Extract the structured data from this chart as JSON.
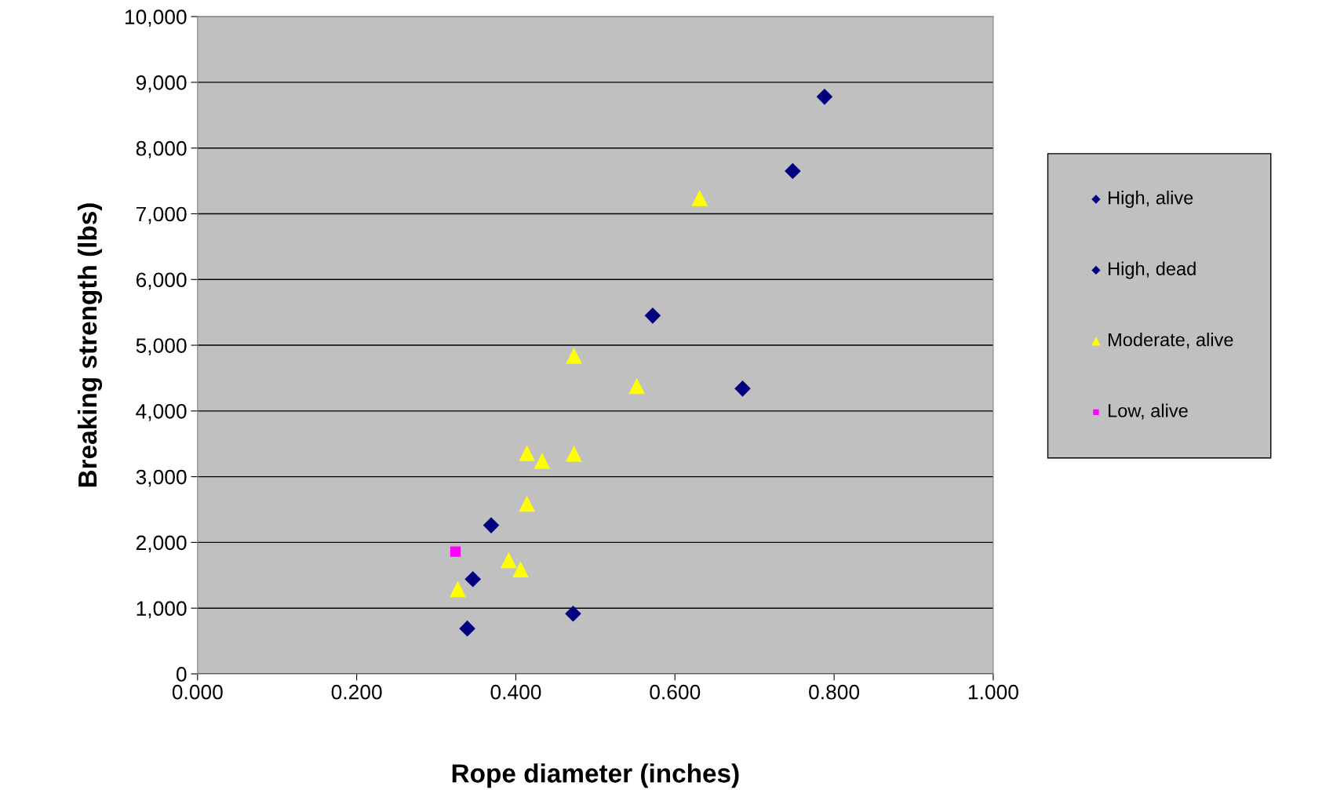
{
  "chart_data": {
    "type": "scatter",
    "xlabel": "Rope diameter (inches)",
    "ylabel": "Breaking strength (lbs)",
    "xlim": [
      0,
      1
    ],
    "xticks": [
      {
        "value": 0,
        "label": "0.000"
      },
      {
        "value": 0.2,
        "label": "0.200"
      },
      {
        "value": 0.4,
        "label": "0.400"
      },
      {
        "value": 0.6,
        "label": "0.600"
      },
      {
        "value": 0.8,
        "label": "0.800"
      },
      {
        "value": 1,
        "label": "1.000"
      }
    ],
    "ylim": [
      0,
      10000
    ],
    "yticks": [
      0,
      {
        "value": 1000,
        "label": "1,000"
      },
      {
        "value": 2000,
        "label": "2,000"
      },
      {
        "value": 3000,
        "label": "3,000"
      },
      {
        "value": 4000,
        "label": "4,000"
      },
      {
        "value": 5000,
        "label": "5,000"
      },
      {
        "value": 6000,
        "label": "6,000"
      },
      {
        "value": 7000,
        "label": "7,000"
      },
      {
        "value": 8000,
        "label": "8,000"
      },
      {
        "value": 9000,
        "label": "9,000"
      },
      {
        "value": 10000,
        "label": "10,000"
      }
    ],
    "grid": "y",
    "legend": "right",
    "series": [
      {
        "name": "High, alive",
        "color": "#000080",
        "marker": "diamond",
        "x": [
          0.685
        ],
        "values": [
          4340
        ]
      },
      {
        "name": "High, dead",
        "color": "#000080",
        "marker": "diamond",
        "x": [
          0.788,
          0.748,
          0.572,
          0.369,
          0.346,
          0.339,
          0.472
        ],
        "values": [
          8780,
          7650,
          5450,
          2260,
          1440,
          690,
          915
        ]
      },
      {
        "name": "Moderate, alive",
        "color": "#ffff00",
        "marker": "triangle",
        "x": [
          0.631,
          0.473,
          0.552,
          0.414,
          0.433,
          0.473,
          0.414,
          0.391,
          0.406,
          0.327
        ],
        "values": [
          7240,
          4840,
          4380,
          3360,
          3240,
          3350,
          2590,
          1730,
          1590,
          1290
        ]
      },
      {
        "name": "Low, alive",
        "color": "#ff00ff",
        "marker": "square",
        "x": [
          0.324
        ],
        "values": [
          1860
        ]
      }
    ]
  }
}
